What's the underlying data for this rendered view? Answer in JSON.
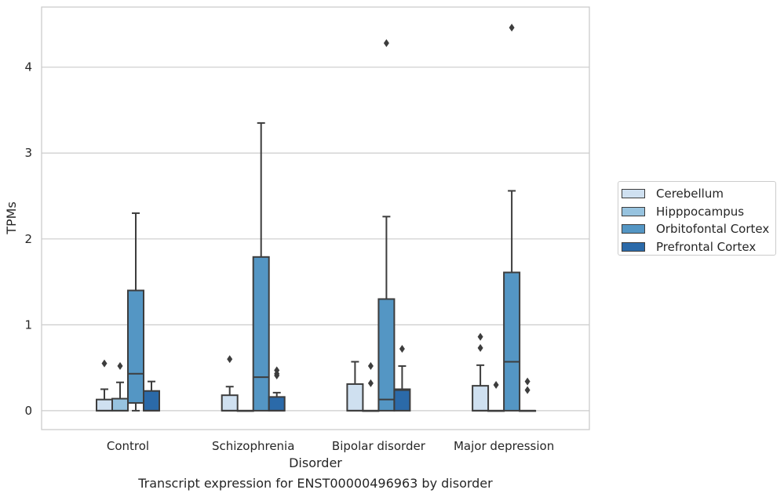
{
  "chart_data": {
    "type": "box",
    "title": "Transcript expression for ENST00000496963 by disorder",
    "xlabel": "Disorder",
    "ylabel": "TPMs",
    "ylim": [
      -0.22,
      4.7
    ],
    "yticks": [
      0,
      1,
      2,
      3,
      4
    ],
    "grid": "horizontal",
    "legend_position": "right",
    "categories": [
      "Control",
      "Schizophrenia",
      "Bipolar disorder",
      "Major depression"
    ],
    "series": [
      {
        "name": "Cerebellum",
        "color": "#cfe0f0",
        "boxes": [
          {
            "whisker_low": 0,
            "q1": 0,
            "median": 0,
            "q3": 0.13,
            "whisker_high": 0.25,
            "outliers": [
              0.55
            ]
          },
          {
            "whisker_low": 0,
            "q1": 0,
            "median": 0,
            "q3": 0.18,
            "whisker_high": 0.28,
            "outliers": [
              0.6
            ]
          },
          {
            "whisker_low": 0,
            "q1": 0,
            "median": 0,
            "q3": 0.31,
            "whisker_high": 0.57,
            "outliers": []
          },
          {
            "whisker_low": 0,
            "q1": 0,
            "median": 0,
            "q3": 0.29,
            "whisker_high": 0.53,
            "outliers": [
              0.73,
              0.86
            ]
          }
        ]
      },
      {
        "name": "Hipppocampus",
        "color": "#97c3df",
        "boxes": [
          {
            "whisker_low": 0,
            "q1": 0,
            "median": 0,
            "q3": 0.14,
            "whisker_high": 0.33,
            "outliers": [
              0.52
            ]
          },
          {
            "whisker_low": 0,
            "q1": 0,
            "median": 0,
            "q3": 0,
            "whisker_high": 0,
            "outliers": []
          },
          {
            "whisker_low": 0,
            "q1": 0,
            "median": 0,
            "q3": 0,
            "whisker_high": 0,
            "outliers": [
              0.32,
              0.52
            ]
          },
          {
            "whisker_low": 0,
            "q1": 0,
            "median": 0,
            "q3": 0,
            "whisker_high": 0,
            "outliers": [
              0.3
            ]
          }
        ]
      },
      {
        "name": "Orbitofontal Cortex",
        "color": "#5496c4",
        "boxes": [
          {
            "whisker_low": 0,
            "q1": 0.09,
            "median": 0.43,
            "q3": 1.4,
            "whisker_high": 2.3,
            "outliers": []
          },
          {
            "whisker_low": 0,
            "q1": 0,
            "median": 0.39,
            "q3": 1.79,
            "whisker_high": 3.35,
            "outliers": []
          },
          {
            "whisker_low": 0,
            "q1": 0,
            "median": 0.13,
            "q3": 1.3,
            "whisker_high": 2.26,
            "outliers": [
              4.28
            ]
          },
          {
            "whisker_low": 0,
            "q1": 0,
            "median": 0.57,
            "q3": 1.61,
            "whisker_high": 2.56,
            "outliers": [
              4.46
            ]
          }
        ]
      },
      {
        "name": "Prefrontal Cortex",
        "color": "#2b6aa9",
        "boxes": [
          {
            "whisker_low": 0,
            "q1": 0,
            "median": 0,
            "q3": 0.23,
            "whisker_high": 0.34,
            "outliers": []
          },
          {
            "whisker_low": 0,
            "q1": 0,
            "median": 0,
            "q3": 0.16,
            "whisker_high": 0.21,
            "outliers": [
              0.41,
              0.43,
              0.47
            ]
          },
          {
            "whisker_low": 0,
            "q1": 0,
            "median": 0.24,
            "q3": 0.25,
            "whisker_high": 0.52,
            "outliers": [
              0.72
            ]
          },
          {
            "whisker_low": 0,
            "q1": 0,
            "median": 0,
            "q3": 0,
            "whisker_high": 0,
            "outliers": [
              0.24,
              0.34
            ]
          }
        ]
      }
    ]
  }
}
